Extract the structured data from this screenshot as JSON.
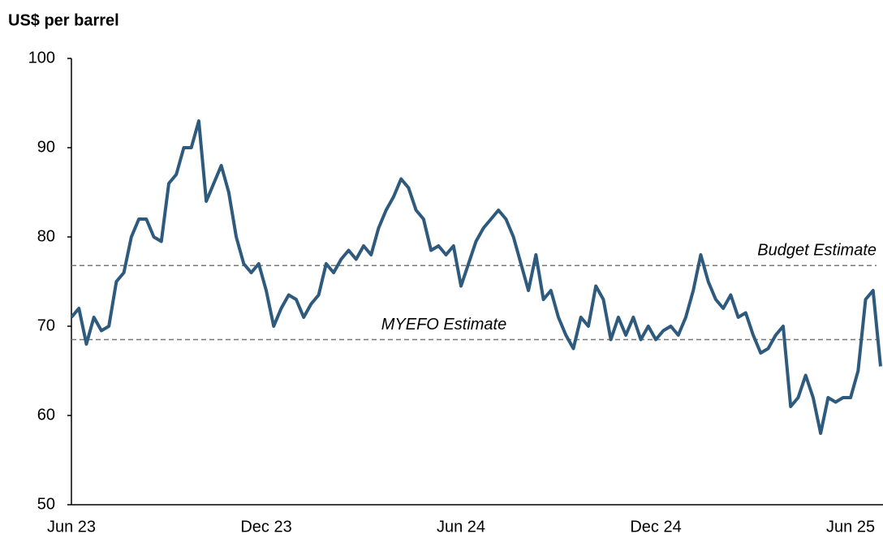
{
  "chart_data": {
    "type": "line",
    "y_axis_title": "US$ per barrel",
    "categories": [
      "Jun 23",
      null,
      null,
      null,
      null,
      null,
      null,
      null,
      null,
      null,
      null,
      null,
      null,
      null,
      null,
      null,
      null,
      null,
      null,
      null,
      null,
      null,
      null,
      null,
      null,
      null,
      "Dec 23",
      null,
      null,
      null,
      null,
      null,
      null,
      null,
      null,
      null,
      null,
      null,
      null,
      null,
      null,
      null,
      null,
      null,
      null,
      null,
      null,
      null,
      null,
      null,
      null,
      null,
      "Jun 24",
      null,
      null,
      null,
      null,
      null,
      null,
      null,
      null,
      null,
      null,
      null,
      null,
      null,
      null,
      null,
      null,
      null,
      null,
      null,
      null,
      null,
      null,
      null,
      null,
      null,
      "Dec 24",
      null,
      null,
      null,
      null,
      null,
      null,
      null,
      null,
      null,
      null,
      null,
      null,
      null,
      null,
      null,
      null,
      null,
      null,
      null,
      null,
      null,
      null,
      null,
      null,
      null,
      "Jun 25",
      null,
      null,
      null,
      null
    ],
    "series": [
      {
        "color": "#2e5a7e",
        "values": [
          71,
          72,
          68,
          71,
          69.5,
          70,
          75,
          76,
          80,
          82,
          82,
          80,
          79.5,
          86,
          87,
          90,
          90,
          93,
          84,
          86,
          88,
          85,
          80,
          77,
          76,
          77,
          74,
          70,
          72,
          73.5,
          73,
          71,
          72.5,
          73.5,
          77,
          76,
          77.5,
          78.5,
          77.5,
          79,
          78,
          81,
          83,
          84.5,
          86.5,
          85.5,
          83,
          82,
          78.5,
          79,
          78,
          79,
          74.5,
          77,
          79.5,
          81,
          82,
          83,
          82,
          80,
          77,
          74,
          78,
          73,
          74,
          71,
          69,
          67.5,
          71,
          70,
          74.5,
          73,
          68.5,
          71,
          69,
          71,
          68.5,
          70,
          68.5,
          69.5,
          70,
          69,
          71,
          74,
          78,
          75,
          73,
          72,
          73.5,
          71,
          71.5,
          69,
          67,
          67.5,
          69,
          70,
          61,
          62,
          64.5,
          62,
          58,
          62,
          61.5,
          62,
          62,
          65,
          73,
          74,
          65.5
        ]
      }
    ],
    "annotations": [
      {
        "text": "Budget Estimate",
        "y": 76.8
      },
      {
        "text": "MYEFO Estimate",
        "y": 68.5
      }
    ],
    "ylim": [
      50,
      100
    ],
    "yticks": [
      50,
      60,
      70,
      80,
      90,
      100
    ],
    "grid": false
  }
}
